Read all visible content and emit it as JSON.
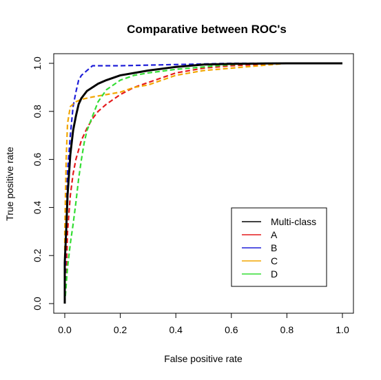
{
  "chart_data": {
    "type": "line",
    "title": "Comparative between ROC's",
    "xlabel": "False positive rate",
    "ylabel": "True positive rate",
    "xlim": [
      0.0,
      1.0
    ],
    "ylim": [
      0.0,
      1.0
    ],
    "xticks": [
      "0.0",
      "0.2",
      "0.4",
      "0.6",
      "0.8",
      "1.0"
    ],
    "yticks": [
      "0.0",
      "0.2",
      "0.4",
      "0.6",
      "0.8",
      "1.0"
    ],
    "grid": false,
    "legend_position": "bottom-right",
    "series": [
      {
        "name": "Multi-class",
        "color": "#000000",
        "style": "solid",
        "points": [
          [
            0.0,
            0.0
          ],
          [
            0.0,
            0.17
          ],
          [
            0.005,
            0.3
          ],
          [
            0.01,
            0.45
          ],
          [
            0.02,
            0.62
          ],
          [
            0.03,
            0.72
          ],
          [
            0.04,
            0.78
          ],
          [
            0.05,
            0.83
          ],
          [
            0.06,
            0.855
          ],
          [
            0.08,
            0.885
          ],
          [
            0.1,
            0.9
          ],
          [
            0.12,
            0.915
          ],
          [
            0.15,
            0.93
          ],
          [
            0.2,
            0.95
          ],
          [
            0.25,
            0.96
          ],
          [
            0.3,
            0.97
          ],
          [
            0.4,
            0.985
          ],
          [
            0.5,
            0.995
          ],
          [
            0.6,
            0.998
          ],
          [
            0.7,
            0.999
          ],
          [
            0.8,
            1.0
          ],
          [
            1.0,
            1.0
          ]
        ]
      },
      {
        "name": "A",
        "color": "#e41a1c",
        "style": "dashed",
        "points": [
          [
            0.0,
            0.0
          ],
          [
            0.005,
            0.1
          ],
          [
            0.01,
            0.3
          ],
          [
            0.02,
            0.45
          ],
          [
            0.03,
            0.54
          ],
          [
            0.04,
            0.6
          ],
          [
            0.05,
            0.64
          ],
          [
            0.06,
            0.68
          ],
          [
            0.08,
            0.73
          ],
          [
            0.1,
            0.77
          ],
          [
            0.12,
            0.8
          ],
          [
            0.15,
            0.83
          ],
          [
            0.2,
            0.87
          ],
          [
            0.25,
            0.9
          ],
          [
            0.3,
            0.92
          ],
          [
            0.35,
            0.94
          ],
          [
            0.4,
            0.96
          ],
          [
            0.5,
            0.98
          ],
          [
            0.6,
            0.99
          ],
          [
            0.7,
            0.995
          ],
          [
            0.8,
            1.0
          ],
          [
            1.0,
            1.0
          ]
        ]
      },
      {
        "name": "B",
        "color": "#1f1fd8",
        "style": "dashed",
        "points": [
          [
            0.0,
            0.0
          ],
          [
            0.005,
            0.35
          ],
          [
            0.01,
            0.55
          ],
          [
            0.02,
            0.7
          ],
          [
            0.03,
            0.82
          ],
          [
            0.04,
            0.88
          ],
          [
            0.05,
            0.93
          ],
          [
            0.06,
            0.95
          ],
          [
            0.08,
            0.97
          ],
          [
            0.1,
            0.99
          ],
          [
            0.2,
            0.99
          ],
          [
            0.4,
            0.995
          ],
          [
            0.6,
            1.0
          ],
          [
            1.0,
            1.0
          ]
        ]
      },
      {
        "name": "C",
        "color": "#f2a600",
        "style": "dashed",
        "points": [
          [
            0.0,
            0.0
          ],
          [
            0.0,
            0.3
          ],
          [
            0.005,
            0.6
          ],
          [
            0.01,
            0.75
          ],
          [
            0.02,
            0.82
          ],
          [
            0.04,
            0.84
          ],
          [
            0.06,
            0.85
          ],
          [
            0.1,
            0.86
          ],
          [
            0.15,
            0.87
          ],
          [
            0.2,
            0.88
          ],
          [
            0.25,
            0.9
          ],
          [
            0.3,
            0.91
          ],
          [
            0.35,
            0.93
          ],
          [
            0.4,
            0.95
          ],
          [
            0.5,
            0.97
          ],
          [
            0.6,
            0.98
          ],
          [
            0.7,
            0.99
          ],
          [
            0.8,
            1.0
          ],
          [
            1.0,
            1.0
          ]
        ]
      },
      {
        "name": "D",
        "color": "#33dd33",
        "style": "dashed",
        "points": [
          [
            0.0,
            0.0
          ],
          [
            0.01,
            0.15
          ],
          [
            0.02,
            0.25
          ],
          [
            0.03,
            0.33
          ],
          [
            0.04,
            0.42
          ],
          [
            0.05,
            0.52
          ],
          [
            0.06,
            0.6
          ],
          [
            0.07,
            0.67
          ],
          [
            0.08,
            0.72
          ],
          [
            0.1,
            0.78
          ],
          [
            0.12,
            0.84
          ],
          [
            0.15,
            0.89
          ],
          [
            0.2,
            0.93
          ],
          [
            0.25,
            0.95
          ],
          [
            0.3,
            0.96
          ],
          [
            0.4,
            0.975
          ],
          [
            0.5,
            0.985
          ],
          [
            0.6,
            0.995
          ],
          [
            0.7,
            1.0
          ],
          [
            1.0,
            1.0
          ]
        ]
      }
    ]
  }
}
